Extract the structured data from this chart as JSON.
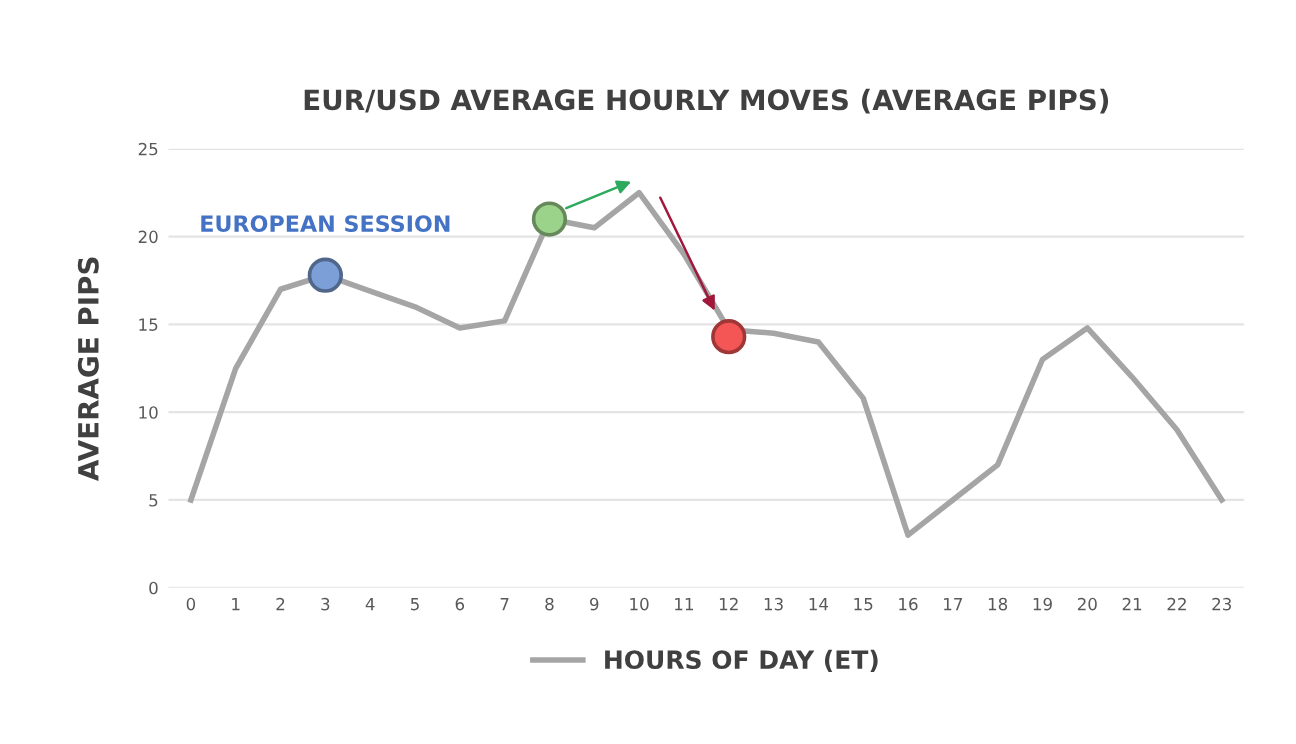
{
  "chart_data": {
    "type": "line",
    "title": "EUR/USD AVERAGE HOURLY MOVES (AVERAGE PIPS)",
    "ylabel": "AVERAGE PIPS",
    "categories": [
      "0",
      "1",
      "2",
      "3",
      "4",
      "5",
      "6",
      "7",
      "8",
      "9",
      "10",
      "11",
      "12",
      "13",
      "14",
      "15",
      "16",
      "17",
      "18",
      "19",
      "20",
      "21",
      "22",
      "23"
    ],
    "series": [
      {
        "name": "HOURS OF DAY (ET)",
        "color": "#a5a5a5",
        "marker": "none",
        "values": [
          5,
          12.5,
          17,
          17.8,
          16.9,
          16,
          14.8,
          15.2,
          21,
          20.5,
          22.5,
          19,
          14.7,
          14.5,
          14,
          10.8,
          3,
          5,
          7,
          13,
          14.8,
          12,
          9,
          5
        ]
      },
      {
        "type": "scatter",
        "marker": "circle",
        "x": [
          "3",
          "8",
          "12"
        ],
        "values": [
          17.8,
          21,
          14.3
        ],
        "colors": [
          "#7b9fd6",
          "#9bd38a",
          "#f45555"
        ]
      }
    ],
    "annotations": [
      {
        "text": "EUROPEAN SESSION",
        "x": "3",
        "y": 17.8
      }
    ],
    "ylim": [
      0,
      25
    ],
    "yticks": [
      0,
      5,
      10,
      15,
      20,
      25
    ],
    "grid": "y",
    "legend": "bottom",
    "line_style": "solid"
  }
}
